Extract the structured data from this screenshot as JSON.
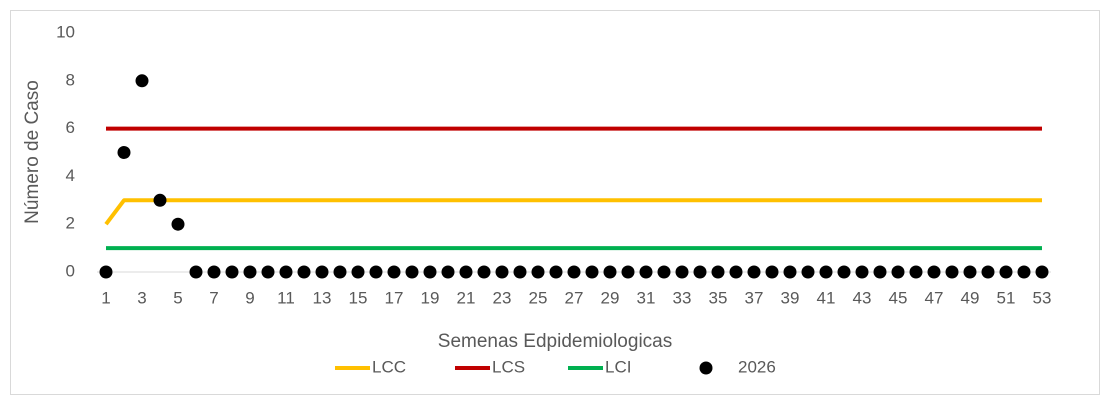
{
  "chart_data": {
    "type": "line",
    "x_label": "Semenas Edpidemiologicas",
    "y_label": "Número de Caso",
    "categories": [
      1,
      null,
      3,
      null,
      5,
      null,
      7,
      null,
      9,
      null,
      11,
      null,
      13,
      null,
      15,
      null,
      17,
      null,
      19,
      null,
      21,
      null,
      23,
      null,
      25,
      null,
      27,
      null,
      29,
      null,
      31,
      null,
      33,
      null,
      35,
      null,
      37,
      null,
      39,
      null,
      41,
      null,
      43,
      null,
      45,
      null,
      47,
      null,
      49,
      null,
      51,
      null,
      53
    ],
    "ylim": [
      0,
      10
    ],
    "yticks": [
      0,
      2,
      4,
      6,
      8,
      10
    ],
    "grid": false,
    "legend": "bottom",
    "series": [
      {
        "name": "LCC",
        "color": "#FFC000",
        "show_line": true,
        "values": [
          2,
          3,
          3,
          3,
          3,
          3,
          3,
          3,
          3,
          3,
          3,
          3,
          3,
          3,
          3,
          3,
          3,
          3,
          3,
          3,
          3,
          3,
          3,
          3,
          3,
          3,
          3,
          3,
          3,
          3,
          3,
          3,
          3,
          3,
          3,
          3,
          3,
          3,
          3,
          3,
          3,
          3,
          3,
          3,
          3,
          3,
          3,
          3,
          3,
          3,
          3,
          3,
          3
        ]
      },
      {
        "name": "LCS",
        "color": "#C00000",
        "show_line": true,
        "values": [
          6,
          6,
          6,
          6,
          6,
          6,
          6,
          6,
          6,
          6,
          6,
          6,
          6,
          6,
          6,
          6,
          6,
          6,
          6,
          6,
          6,
          6,
          6,
          6,
          6,
          6,
          6,
          6,
          6,
          6,
          6,
          6,
          6,
          6,
          6,
          6,
          6,
          6,
          6,
          6,
          6,
          6,
          6,
          6,
          6,
          6,
          6,
          6,
          6,
          6,
          6,
          6,
          6
        ]
      },
      {
        "name": "LCI",
        "color": "#00B050",
        "show_line": true,
        "values": [
          1,
          1,
          1,
          1,
          1,
          1,
          1,
          1,
          1,
          1,
          1,
          1,
          1,
          1,
          1,
          1,
          1,
          1,
          1,
          1,
          1,
          1,
          1,
          1,
          1,
          1,
          1,
          1,
          1,
          1,
          1,
          1,
          1,
          1,
          1,
          1,
          1,
          1,
          1,
          1,
          1,
          1,
          1,
          1,
          1,
          1,
          1,
          1,
          1,
          1,
          1,
          1,
          1
        ]
      },
      {
        "name": "2026",
        "color": "#000000",
        "show_line": false,
        "values": [
          0,
          5,
          8,
          3,
          2,
          0,
          0,
          0,
          0,
          0,
          0,
          0,
          0,
          0,
          0,
          0,
          0,
          0,
          0,
          0,
          0,
          0,
          0,
          0,
          0,
          0,
          0,
          0,
          0,
          0,
          0,
          0,
          0,
          0,
          0,
          0,
          0,
          0,
          0,
          0,
          0,
          0,
          0,
          0,
          0,
          0,
          0,
          0,
          0,
          0,
          0,
          0,
          0
        ]
      }
    ]
  }
}
